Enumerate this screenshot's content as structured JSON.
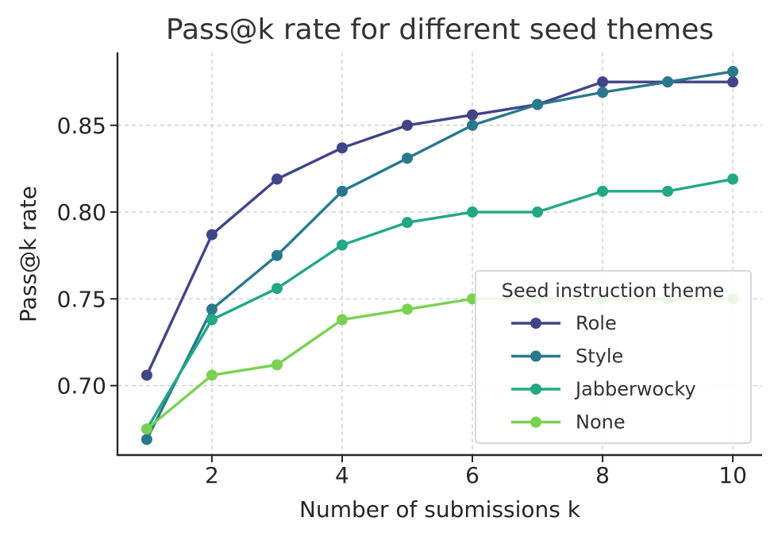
{
  "chart_data": {
    "type": "line",
    "title": "Pass@k rate for different seed themes",
    "xlabel": "Number of submissions k",
    "ylabel": "Pass@k rate",
    "x": [
      1,
      2,
      3,
      4,
      5,
      6,
      7,
      8,
      9,
      10
    ],
    "xlim": [
      0.55,
      10.45
    ],
    "ylim": [
      0.66,
      0.892
    ],
    "xticks": [
      2,
      4,
      6,
      8,
      10
    ],
    "xtick_labels": [
      "2",
      "4",
      "6",
      "8",
      "10"
    ],
    "yticks": [
      0.7,
      0.75,
      0.8,
      0.85
    ],
    "ytick_labels": [
      "0.70",
      "0.75",
      "0.80",
      "0.85"
    ],
    "grid": true,
    "legend": {
      "title": "Seed instruction theme",
      "placement": "lower-right"
    },
    "series": [
      {
        "name": "Role",
        "color": "#414487",
        "values": [
          0.706,
          0.787,
          0.819,
          0.837,
          0.85,
          0.856,
          0.862,
          0.875,
          0.875,
          0.875
        ]
      },
      {
        "name": "Style",
        "color": "#2a788e",
        "values": [
          0.669,
          0.744,
          0.775,
          0.812,
          0.831,
          0.85,
          0.862,
          0.869,
          0.875,
          0.881
        ]
      },
      {
        "name": "Jabberwocky",
        "color": "#22a884",
        "values": [
          0.675,
          0.738,
          0.756,
          0.781,
          0.794,
          0.8,
          0.8,
          0.812,
          0.812,
          0.819
        ]
      },
      {
        "name": "None",
        "color": "#7ad151",
        "values": [
          0.675,
          0.706,
          0.712,
          0.738,
          0.744,
          0.75,
          0.75,
          0.75,
          0.75,
          0.75
        ]
      }
    ]
  }
}
